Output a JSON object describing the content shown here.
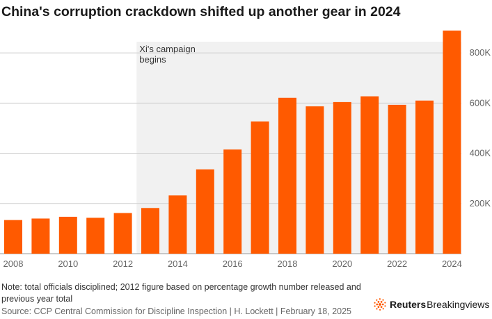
{
  "title": "China's corruption crackdown shifted up another gear in 2024",
  "note": "Note: total officials disciplined; 2012 figure based on percentage growth number released and previous year total",
  "source": "Source: CCP Central Commission for Discipline Inspection | H. Lockett | February 18, 2025",
  "brand": {
    "name_bold": "Reuters",
    "name_regular": "Breakingviews",
    "logo_icon": "reuters-dot-logo-icon"
  },
  "colors": {
    "bar": "#ff5a00",
    "shade": "#f1f1f1",
    "grid": "#cfcfcf",
    "axis_text": "#666666"
  },
  "chart_data": {
    "type": "bar",
    "categories": [
      "2008",
      "2009",
      "2010",
      "2011",
      "2012",
      "2013",
      "2014",
      "2015",
      "2016",
      "2017",
      "2018",
      "2019",
      "2020",
      "2021",
      "2022",
      "2023",
      "2024"
    ],
    "values": [
      134000,
      140000,
      147000,
      143000,
      162000,
      182000,
      232000,
      336000,
      415000,
      527000,
      621000,
      587000,
      604000,
      627000,
      593000,
      610000,
      889000
    ],
    "x_tick_labels": [
      "2008",
      "2010",
      "2012",
      "2014",
      "2016",
      "2018",
      "2020",
      "2022",
      "2024"
    ],
    "y_ticks": [
      {
        "value": 200000,
        "label": "200K"
      },
      {
        "value": 400000,
        "label": "400K"
      },
      {
        "value": 600000,
        "label": "600K"
      },
      {
        "value": 800000,
        "label": "800K"
      }
    ],
    "ylim": [
      0,
      900000
    ],
    "y_axis_position": "right",
    "grid": true,
    "xlabel": "",
    "ylabel": "",
    "highlight_region": {
      "from": "2013",
      "to": "2024",
      "label_lines": [
        "Xi's campaign",
        "begins"
      ]
    }
  }
}
